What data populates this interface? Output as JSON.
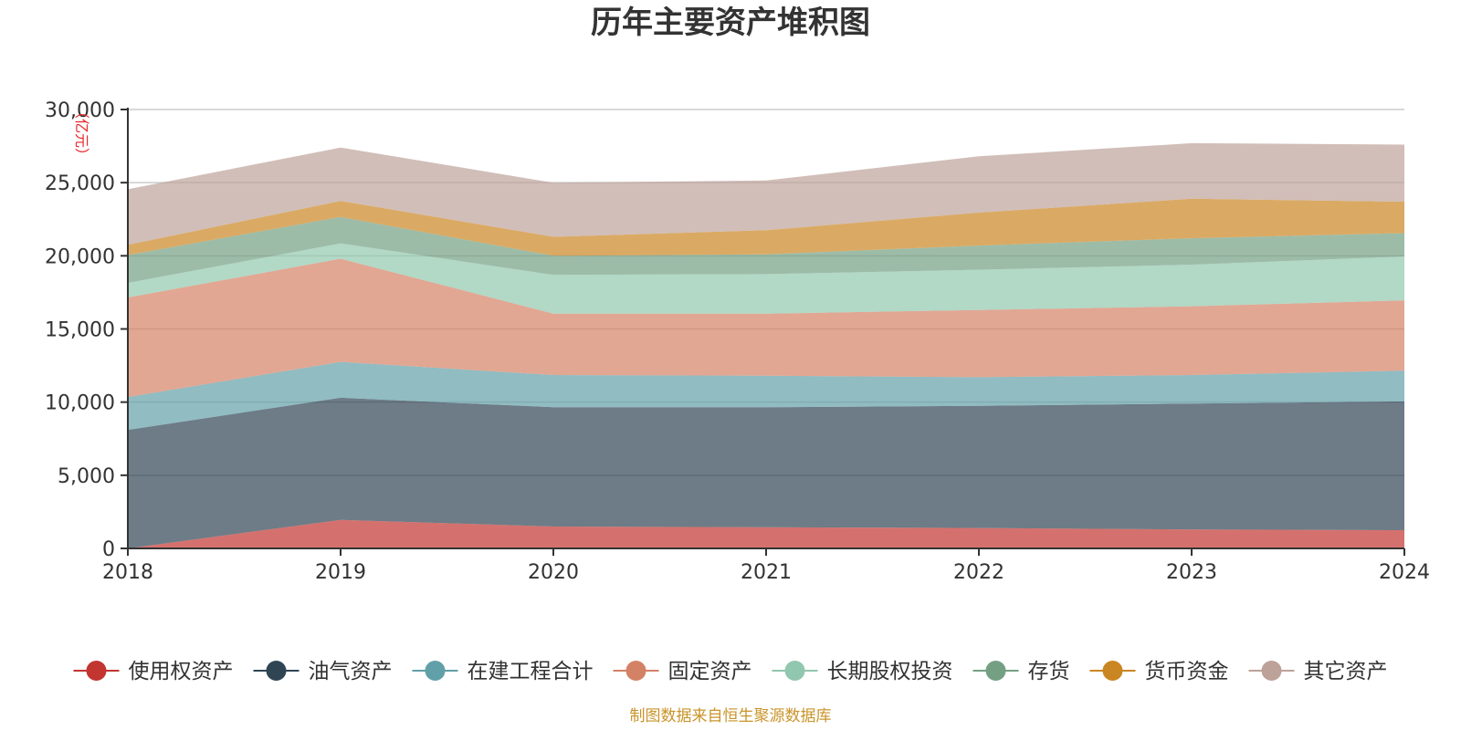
{
  "chart_data": {
    "type": "area",
    "stacked": true,
    "title": "历年主要资产堆积图",
    "unit": "亿元",
    "x": [
      "2018",
      "2019",
      "2020",
      "2021",
      "2022",
      "2023",
      "2024"
    ],
    "ylim": [
      0,
      30000
    ],
    "yticks": [
      0,
      5000,
      10000,
      15000,
      20000,
      25000,
      30000
    ],
    "ytick_labels": [
      "0",
      "5,000",
      "10,000",
      "15,000",
      "20,000",
      "25,000",
      "30,000"
    ],
    "grid": true,
    "legend_position": "bottom",
    "series": [
      {
        "name": "使用权资产",
        "values": [
          0,
          1950,
          1500,
          1450,
          1400,
          1300,
          1250
        ],
        "color": "#c23531"
      },
      {
        "name": "油气资产",
        "values": [
          8100,
          8350,
          8150,
          8200,
          8350,
          8600,
          8800
        ],
        "color": "#2f4554"
      },
      {
        "name": "在建工程合计",
        "values": [
          2250,
          2450,
          2200,
          2150,
          1950,
          1950,
          2100
        ],
        "color": "#61a0a8"
      },
      {
        "name": "固定资产",
        "values": [
          6800,
          7050,
          4200,
          4250,
          4600,
          4700,
          4800
        ],
        "color": "#d48265"
      },
      {
        "name": "长期股权投资",
        "values": [
          1000,
          1050,
          2650,
          2700,
          2750,
          2850,
          3000
        ],
        "color": "#91c7ae"
      },
      {
        "name": "存货",
        "values": [
          1900,
          1800,
          1300,
          1350,
          1650,
          1800,
          1600
        ],
        "color": "#749f83"
      },
      {
        "name": "货币资金",
        "values": [
          700,
          1100,
          1300,
          1650,
          2250,
          2700,
          2150
        ],
        "color": "#ca8622"
      },
      {
        "name": "其它资产",
        "values": [
          3800,
          3650,
          3700,
          3400,
          3850,
          3800,
          3900
        ],
        "color": "#bda29a"
      }
    ]
  },
  "source_text": "制图数据来自恒生聚源数据库"
}
